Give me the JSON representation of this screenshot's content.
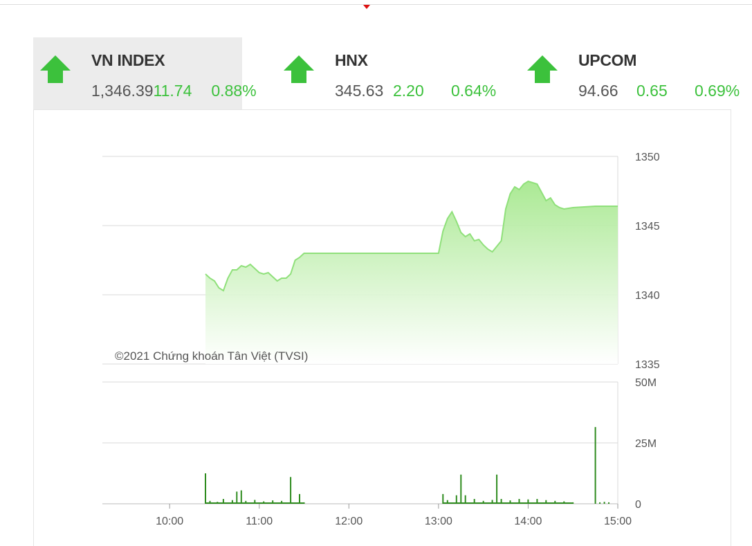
{
  "indices": [
    {
      "name": "VN INDEX",
      "value": "1,346.39",
      "change": "11.74",
      "pct": "0.88%",
      "direction": "up",
      "active": true
    },
    {
      "name": "HNX",
      "value": "345.63",
      "change": "2.20",
      "pct": "0.64%",
      "direction": "up",
      "active": false
    },
    {
      "name": "UPCOM",
      "value": "94.66",
      "change": "0.65",
      "pct": "0.69%",
      "direction": "up",
      "active": false
    }
  ],
  "colors": {
    "up": "#3cc13c",
    "line": "#8fe07a",
    "fill_top": "#a6e88e",
    "volume": "#2e8b1e"
  },
  "chart_data": {
    "type": "area",
    "watermark": "©2021 Chứng khoán Tân Việt (TVSI)",
    "x_ticks": [
      "10:00",
      "11:00",
      "12:00",
      "13:00",
      "14:00",
      "15:00"
    ],
    "x_range": [
      "09:15",
      "15:00"
    ],
    "price": {
      "ylim": [
        1335,
        1350
      ],
      "y_ticks": [
        "1350",
        "1345",
        "1340",
        "1335"
      ],
      "series": [
        {
          "values": [
            [
              "10:24",
              1341.5
            ],
            [
              "10:27",
              1341.2
            ],
            [
              "10:30",
              1341.0
            ],
            [
              "10:33",
              1340.5
            ],
            [
              "10:36",
              1340.3
            ],
            [
              "10:39",
              1341.2
            ],
            [
              "10:42",
              1341.8
            ],
            [
              "10:45",
              1341.8
            ],
            [
              "10:48",
              1342.1
            ],
            [
              "10:51",
              1342.0
            ],
            [
              "10:54",
              1342.2
            ],
            [
              "10:57",
              1341.9
            ],
            [
              "11:00",
              1341.6
            ],
            [
              "11:03",
              1341.5
            ],
            [
              "11:06",
              1341.6
            ],
            [
              "11:09",
              1341.3
            ],
            [
              "11:12",
              1341.0
            ],
            [
              "11:15",
              1341.2
            ],
            [
              "11:18",
              1341.2
            ],
            [
              "11:21",
              1341.5
            ],
            [
              "11:24",
              1342.5
            ],
            [
              "11:27",
              1342.7
            ],
            [
              "11:30",
              1343.0
            ],
            [
              "12:00",
              1343.0
            ],
            [
              "12:30",
              1343.0
            ],
            [
              "13:00",
              1343.0
            ],
            [
              "13:03",
              1344.6
            ],
            [
              "13:06",
              1345.5
            ],
            [
              "13:09",
              1346.0
            ],
            [
              "13:12",
              1345.3
            ],
            [
              "13:15",
              1344.5
            ],
            [
              "13:18",
              1344.2
            ],
            [
              "13:21",
              1344.4
            ],
            [
              "13:24",
              1343.9
            ],
            [
              "13:27",
              1344.0
            ],
            [
              "13:30",
              1343.6
            ],
            [
              "13:33",
              1343.3
            ],
            [
              "13:36",
              1343.1
            ],
            [
              "13:39",
              1343.5
            ],
            [
              "13:42",
              1343.9
            ],
            [
              "13:45",
              1346.2
            ],
            [
              "13:48",
              1347.3
            ],
            [
              "13:51",
              1347.8
            ],
            [
              "13:54",
              1347.6
            ],
            [
              "13:57",
              1348.0
            ],
            [
              "14:00",
              1348.2
            ],
            [
              "14:03",
              1348.1
            ],
            [
              "14:06",
              1348.0
            ],
            [
              "14:09",
              1347.4
            ],
            [
              "14:12",
              1346.8
            ],
            [
              "14:15",
              1347.0
            ],
            [
              "14:18",
              1346.5
            ],
            [
              "14:21",
              1346.3
            ],
            [
              "14:24",
              1346.2
            ],
            [
              "14:30",
              1346.3
            ],
            [
              "14:45",
              1346.4
            ],
            [
              "15:00",
              1346.4
            ]
          ]
        }
      ]
    },
    "volume": {
      "ylim": [
        0,
        50
      ],
      "unit": "M",
      "y_ticks": [
        "50M",
        "25M",
        "0"
      ],
      "series": [
        {
          "values": [
            [
              "10:24",
              12.5
            ],
            [
              "10:27",
              1.2
            ],
            [
              "10:32",
              0.8
            ],
            [
              "10:36",
              2.0
            ],
            [
              "10:42",
              1.5
            ],
            [
              "10:45",
              5.0
            ],
            [
              "10:48",
              5.5
            ],
            [
              "10:51",
              1.2
            ],
            [
              "10:57",
              1.6
            ],
            [
              "11:03",
              1.0
            ],
            [
              "11:09",
              1.4
            ],
            [
              "11:15",
              1.2
            ],
            [
              "11:21",
              11.0
            ],
            [
              "11:27",
              4.0
            ],
            [
              "11:30",
              0.6
            ],
            [
              "13:03",
              4.0
            ],
            [
              "13:06",
              1.5
            ],
            [
              "13:12",
              3.5
            ],
            [
              "13:15",
              12.0
            ],
            [
              "13:18",
              3.5
            ],
            [
              "13:24",
              2.0
            ],
            [
              "13:30",
              1.2
            ],
            [
              "13:36",
              1.6
            ],
            [
              "13:39",
              12.0
            ],
            [
              "13:42",
              2.0
            ],
            [
              "13:48",
              1.4
            ],
            [
              "13:54",
              2.0
            ],
            [
              "14:00",
              1.8
            ],
            [
              "14:06",
              2.0
            ],
            [
              "14:12",
              1.5
            ],
            [
              "14:18",
              1.2
            ],
            [
              "14:24",
              1.0
            ],
            [
              "14:30",
              0.6
            ],
            [
              "14:45",
              31.5
            ],
            [
              "14:48",
              0.6
            ],
            [
              "14:51",
              0.8
            ],
            [
              "14:54",
              0.6
            ]
          ]
        }
      ]
    }
  }
}
